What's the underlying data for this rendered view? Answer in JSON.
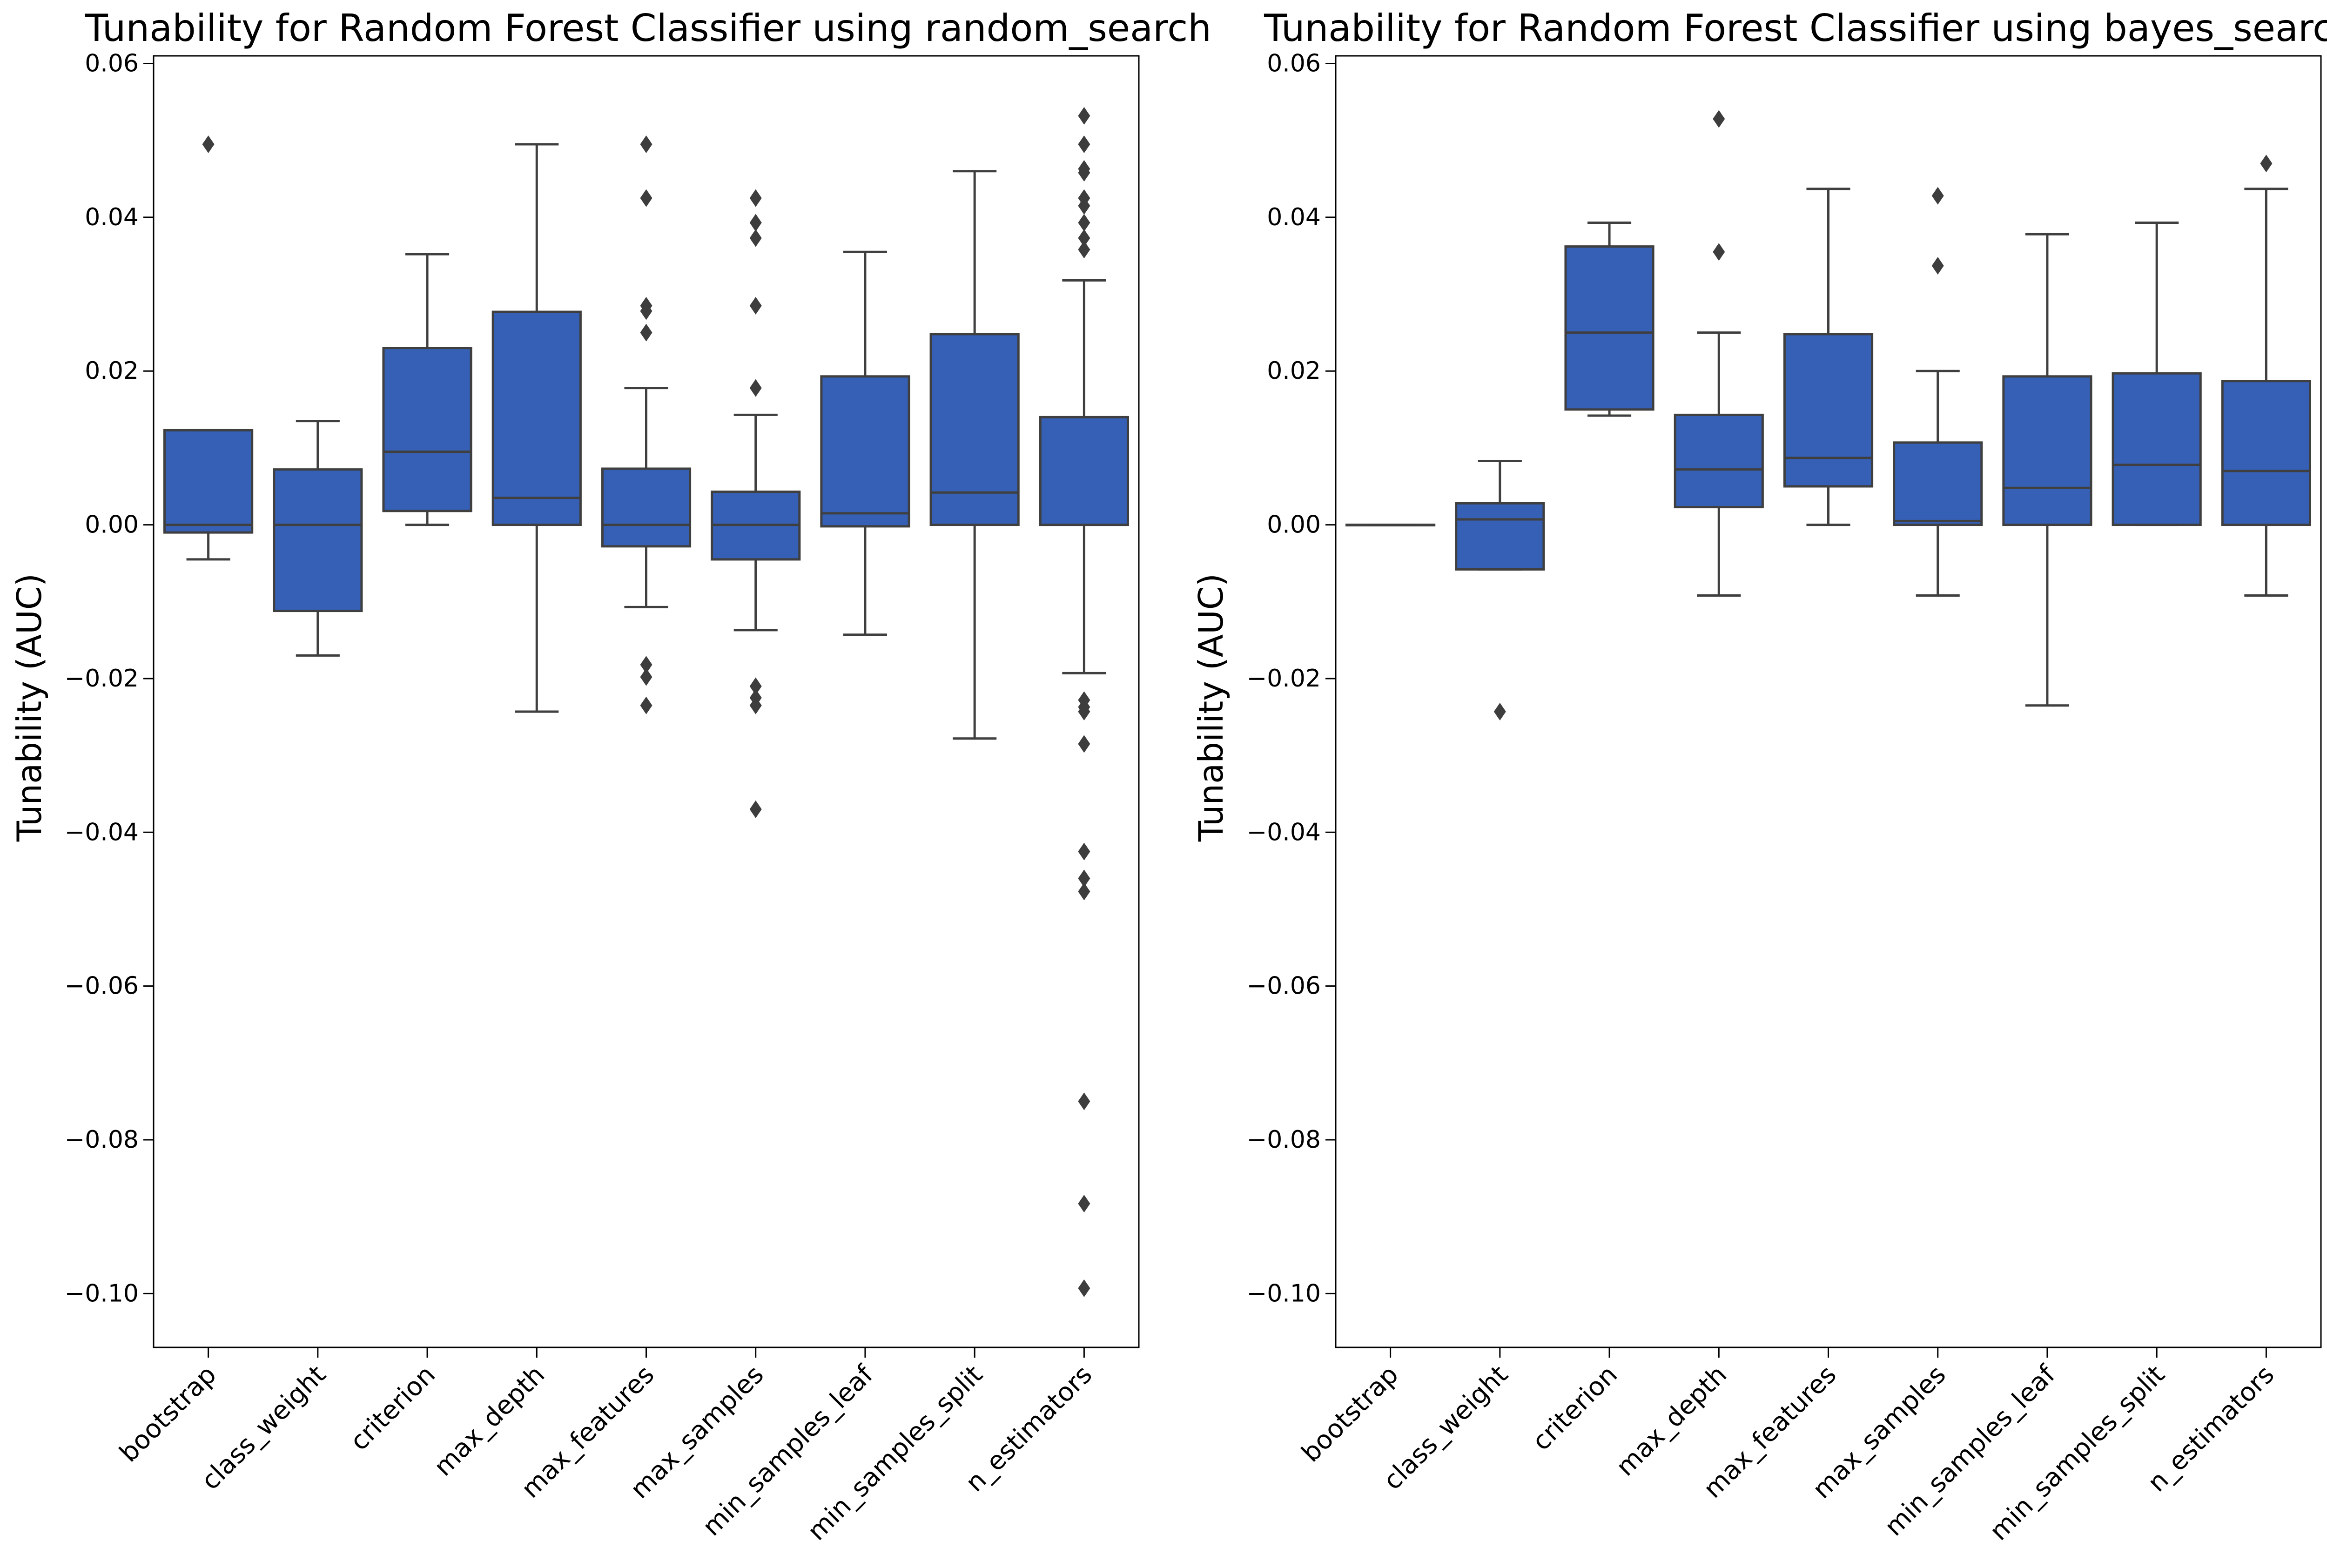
{
  "chart_data": [
    {
      "type": "box",
      "title": "Tunability for Random Forest Classifier using random_search",
      "xlabel": "",
      "ylabel": "Tunability (AUC)",
      "ylim": [
        -0.107,
        0.061
      ],
      "yticks": [
        0.06,
        0.04,
        0.02,
        0.0,
        -0.02,
        -0.04,
        -0.06,
        -0.08,
        -0.1
      ],
      "ytick_labels": [
        "0.06",
        "0.04",
        "0.02",
        "0.00",
        "−0.02",
        "−0.04",
        "−0.06",
        "−0.08",
        "−0.10"
      ],
      "grid": false,
      "box_color": "#3560b5",
      "line_color": "#3f3f3f",
      "categories": [
        "bootstrap",
        "class_weight",
        "criterion",
        "max_depth",
        "max_features",
        "max_samples",
        "min_samples_leaf",
        "min_samples_split",
        "n_estimators"
      ],
      "boxes": [
        {
          "whislo": -0.0045,
          "q1": -0.001,
          "med": 0.0,
          "q3": 0.0123,
          "whishi": 0.0123,
          "fliers": [
            0.0495
          ]
        },
        {
          "whislo": -0.017,
          "q1": -0.0112,
          "med": 0.0,
          "q3": 0.0072,
          "whishi": 0.0135,
          "fliers": []
        },
        {
          "whislo": 0.0,
          "q1": 0.0018,
          "med": 0.0095,
          "q3": 0.023,
          "whishi": 0.0352,
          "fliers": []
        },
        {
          "whislo": -0.0243,
          "q1": 0.0,
          "med": 0.0035,
          "q3": 0.0277,
          "whishi": 0.0495,
          "fliers": []
        },
        {
          "whislo": -0.0107,
          "q1": -0.0028,
          "med": 0.0,
          "q3": 0.0073,
          "whishi": 0.0178,
          "fliers": [
            0.0495,
            0.0425,
            0.0285,
            0.0278,
            0.025,
            -0.0182,
            -0.0198,
            -0.0235
          ]
        },
        {
          "whislo": -0.0137,
          "q1": -0.0045,
          "med": 0.0,
          "q3": 0.0043,
          "whishi": 0.0143,
          "fliers": [
            0.0425,
            0.0393,
            0.0373,
            0.0285,
            0.0178,
            -0.021,
            -0.0225,
            -0.0235,
            -0.037
          ]
        },
        {
          "whislo": -0.0143,
          "q1": -0.0002,
          "med": 0.0015,
          "q3": 0.0193,
          "whishi": 0.0355,
          "fliers": []
        },
        {
          "whislo": -0.0278,
          "q1": 0.0,
          "med": 0.0042,
          "q3": 0.0248,
          "whishi": 0.046,
          "fliers": []
        },
        {
          "whislo": -0.0193,
          "q1": 0.0,
          "med": 0.0,
          "q3": 0.014,
          "whishi": 0.0318,
          "fliers": [
            0.0532,
            0.0495,
            0.0463,
            0.0458,
            0.0425,
            0.0415,
            0.0393,
            0.0373,
            0.0358,
            -0.0228,
            -0.0237,
            -0.0243,
            -0.0285,
            -0.0425,
            -0.046,
            -0.0477,
            -0.075,
            -0.0883,
            -0.0993
          ]
        }
      ]
    },
    {
      "type": "box",
      "title": "Tunability for Random Forest Classifier using bayes_search",
      "xlabel": "",
      "ylabel": "Tunability (AUC)",
      "ylim": [
        -0.107,
        0.061
      ],
      "yticks": [
        0.06,
        0.04,
        0.02,
        0.0,
        -0.02,
        -0.04,
        -0.06,
        -0.08,
        -0.1
      ],
      "ytick_labels": [
        "0.06",
        "0.04",
        "0.02",
        "0.00",
        "−0.02",
        "−0.04",
        "−0.06",
        "−0.08",
        "−0.10"
      ],
      "grid": false,
      "box_color": "#3560b5",
      "line_color": "#3f3f3f",
      "categories": [
        "bootstrap",
        "class_weight",
        "criterion",
        "max_depth",
        "max_features",
        "max_samples",
        "min_samples_leaf",
        "min_samples_split",
        "n_estimators"
      ],
      "boxes": [
        {
          "whislo": 0.0,
          "q1": 0.0,
          "med": 0.0,
          "q3": 0.0,
          "whishi": 0.0,
          "fliers": []
        },
        {
          "whislo": -0.0058,
          "q1": -0.0058,
          "med": 0.0007,
          "q3": 0.0028,
          "whishi": 0.0083,
          "fliers": [
            -0.0243
          ]
        },
        {
          "whislo": 0.0142,
          "q1": 0.015,
          "med": 0.025,
          "q3": 0.0362,
          "whishi": 0.0393,
          "fliers": []
        },
        {
          "whislo": -0.0092,
          "q1": 0.0023,
          "med": 0.0072,
          "q3": 0.0143,
          "whishi": 0.025,
          "fliers": [
            0.0528,
            0.0355
          ]
        },
        {
          "whislo": 0.0,
          "q1": 0.005,
          "med": 0.0087,
          "q3": 0.0248,
          "whishi": 0.0437,
          "fliers": []
        },
        {
          "whislo": -0.0092,
          "q1": 0.0,
          "med": 0.0005,
          "q3": 0.0107,
          "whishi": 0.02,
          "fliers": [
            0.0428,
            0.0337
          ]
        },
        {
          "whislo": -0.0235,
          "q1": 0.0,
          "med": 0.0048,
          "q3": 0.0193,
          "whishi": 0.0378,
          "fliers": []
        },
        {
          "whislo": 0.0,
          "q1": 0.0,
          "med": 0.0078,
          "q3": 0.0197,
          "whishi": 0.0393,
          "fliers": []
        },
        {
          "whislo": -0.0092,
          "q1": 0.0,
          "med": 0.007,
          "q3": 0.0187,
          "whishi": 0.0437,
          "fliers": [
            0.047
          ]
        }
      ]
    }
  ]
}
